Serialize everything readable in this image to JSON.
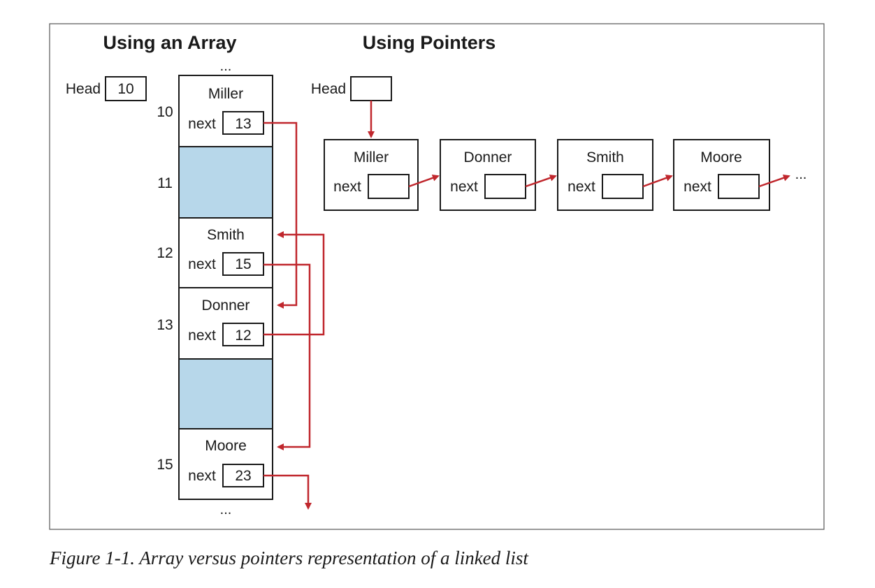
{
  "titles": {
    "array": "Using an Array",
    "pointers": "Using Pointers"
  },
  "head_label": "Head",
  "next_label": "next",
  "ellipsis": "...",
  "array_head_value": "10",
  "array_cells": [
    {
      "index": "10",
      "name": "Miller",
      "next": "13"
    },
    {
      "index": "11"
    },
    {
      "index": "12",
      "name": "Smith",
      "next": "15"
    },
    {
      "index": "13",
      "name": "Donner",
      "next": "12"
    },
    {
      "index": ""
    },
    {
      "index": "15",
      "name": "Moore",
      "next": "23"
    }
  ],
  "pointer_nodes": [
    "Miller",
    "Donner",
    "Smith",
    "Moore"
  ],
  "caption": "Figure 1-1. Array versus pointers representation of a linked list",
  "colors": {
    "arrow": "#c0272d",
    "empty_cell": "#b7d7ea",
    "line": "#1a1a1a"
  }
}
